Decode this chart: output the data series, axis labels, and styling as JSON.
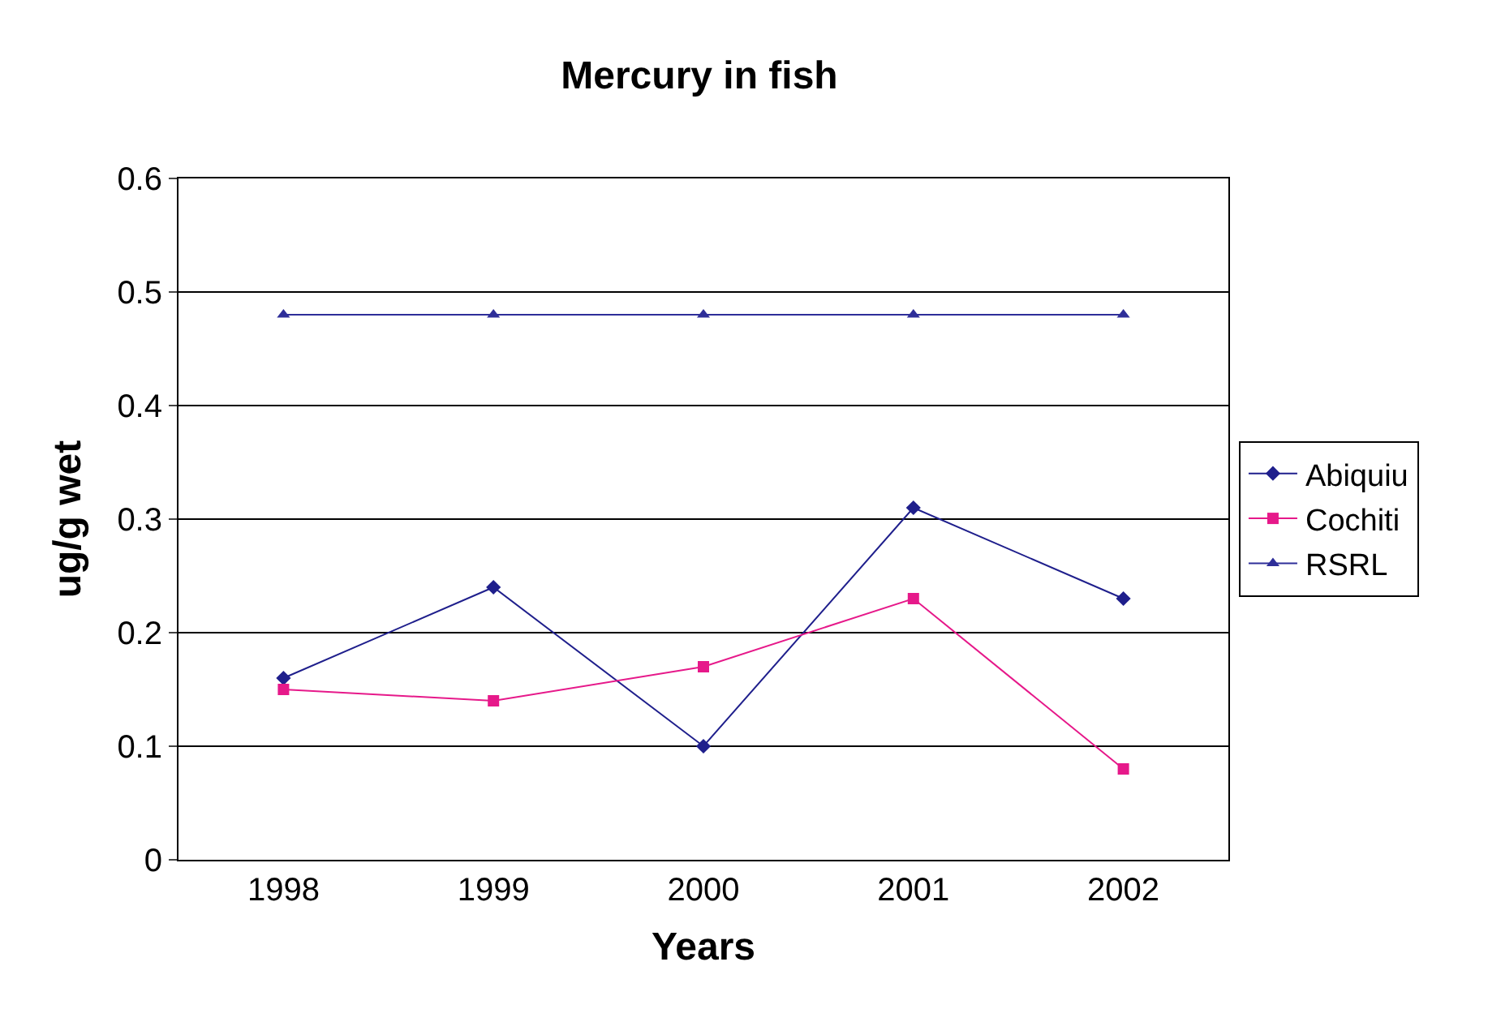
{
  "chart_data": {
    "type": "line",
    "title": "Mercury in fish",
    "xlabel": "Years",
    "ylabel": "ug/g wet",
    "categories": [
      "1998",
      "1999",
      "2000",
      "2001",
      "2002"
    ],
    "series": [
      {
        "name": "Abiquiu",
        "color": "#1f1f8c",
        "marker": "diamond",
        "values": [
          0.16,
          0.24,
          0.1,
          0.31,
          0.23
        ]
      },
      {
        "name": "Cochiti",
        "color": "#e6198a",
        "marker": "square",
        "values": [
          0.15,
          0.14,
          0.17,
          0.23,
          0.08
        ]
      },
      {
        "name": "RSRL",
        "color": "#2e2e99",
        "marker": "triangle",
        "values": [
          0.48,
          0.48,
          0.48,
          0.48,
          0.48
        ]
      }
    ],
    "ylim": [
      0,
      0.6
    ],
    "yticks": [
      0,
      0.1,
      0.2,
      0.3,
      0.4,
      0.5,
      0.6
    ],
    "grid": "y",
    "legend": "right",
    "line_style": "solid"
  }
}
